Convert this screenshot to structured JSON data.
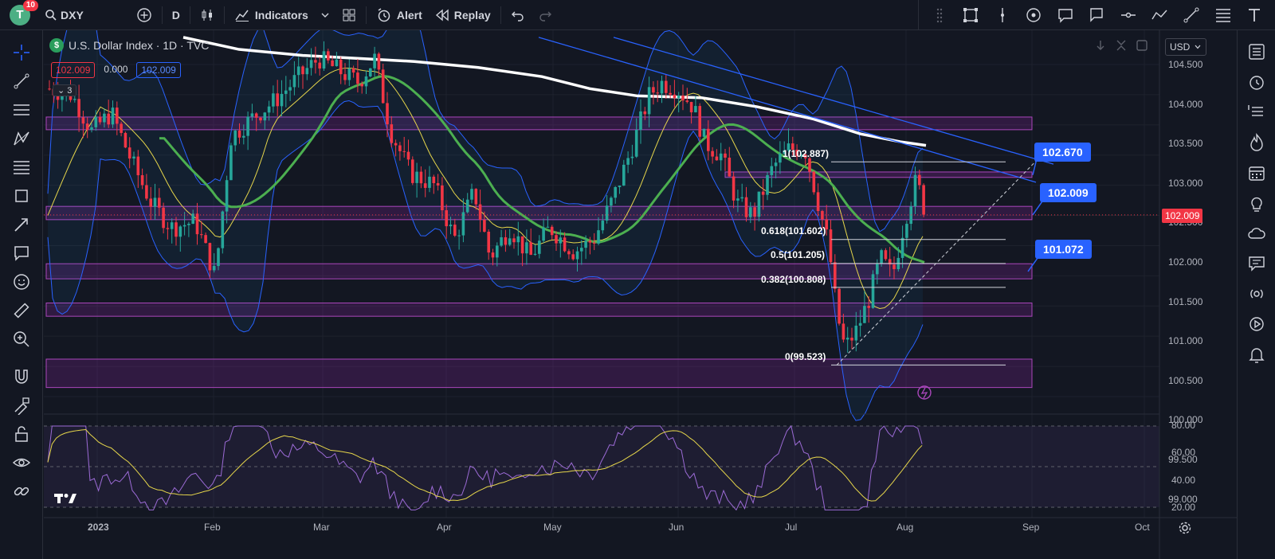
{
  "toolbar": {
    "avatar_letter": "T",
    "notifications": "10",
    "symbol": "DXY",
    "interval": "D",
    "indicators_label": "Indicators",
    "alert_label": "Alert",
    "replay_label": "Replay"
  },
  "legend": {
    "title": "U.S. Dollar Index · 1D · TVC",
    "currency_symbol": "$",
    "value_red": "102.009",
    "value_mid": "0.000",
    "value_blue": "102.009",
    "indicator_count": "3"
  },
  "price_axis": {
    "currency": "USD",
    "ticks": [
      "104.500",
      "104.000",
      "103.500",
      "103.000",
      "102.500",
      "102.000",
      "101.500",
      "101.000",
      "100.500",
      "100.000",
      "99.500",
      "99.000"
    ],
    "current_price": "102.009"
  },
  "rsi_axis": {
    "ticks": [
      "80.00",
      "60.00",
      "40.00",
      "20.00"
    ]
  },
  "time_axis": {
    "labels": [
      "2023",
      "Feb",
      "Mar",
      "Apr",
      "May",
      "Jun",
      "Jul",
      "Aug",
      "Sep",
      "Oct"
    ]
  },
  "callouts": {
    "upper": "102.670",
    "middle": "102.009",
    "lower": "101.072"
  },
  "fib_levels": {
    "top": "1(102.887)",
    "l618": "0.618(101.602)",
    "l5": "0.5(101.205)",
    "l382": "0.382(100.808)",
    "zero": "0(99.523)"
  },
  "colors": {
    "background": "#131722",
    "up": "#26a69a",
    "down": "#f23645",
    "accent": "#2962ff",
    "zone": "#9c27b0"
  }
}
